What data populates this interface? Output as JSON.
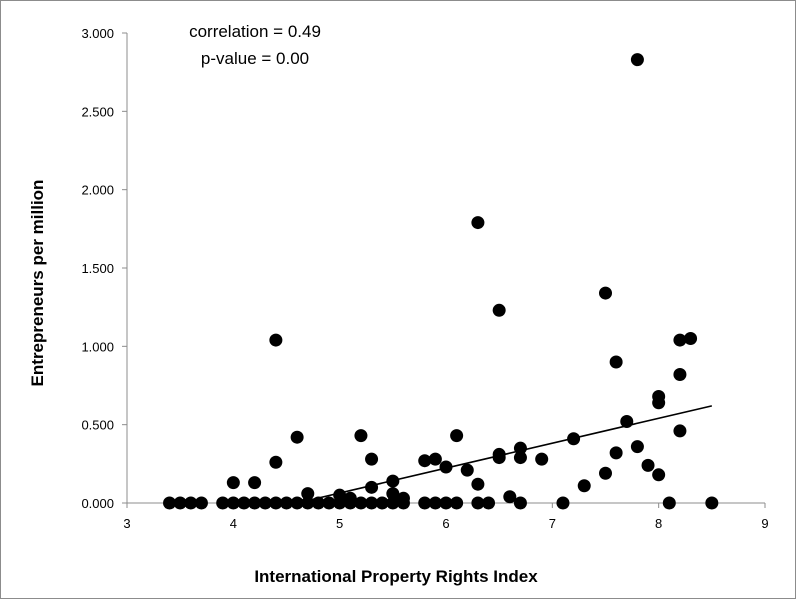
{
  "chart_data": {
    "type": "scatter",
    "xlabel": "International Property Rights Index",
    "ylabel": "Entrepreneurs per million",
    "xlim": [
      3,
      9
    ],
    "ylim": [
      0,
      3
    ],
    "x_ticks": [
      "3",
      "4",
      "5",
      "6",
      "7",
      "8",
      "9"
    ],
    "y_ticks": [
      "0.000",
      "0.500",
      "1.000",
      "1.500",
      "2.000",
      "2.500",
      "3.000"
    ],
    "grid": false,
    "legend": "none",
    "annotations": [
      "correlation = 0.49",
      "p-value = 0.00"
    ],
    "point_color": "#000000",
    "trendline": {
      "x": [
        4.6,
        8.5
      ],
      "y": [
        0.0,
        0.62
      ]
    },
    "points": [
      {
        "x": 3.4,
        "y": 0.0
      },
      {
        "x": 3.5,
        "y": 0.0
      },
      {
        "x": 3.6,
        "y": 0.0
      },
      {
        "x": 3.7,
        "y": 0.0
      },
      {
        "x": 3.9,
        "y": 0.0
      },
      {
        "x": 4.0,
        "y": 0.0
      },
      {
        "x": 4.1,
        "y": 0.0
      },
      {
        "x": 4.2,
        "y": 0.0
      },
      {
        "x": 4.3,
        "y": 0.0
      },
      {
        "x": 4.4,
        "y": 0.0
      },
      {
        "x": 4.5,
        "y": 0.0
      },
      {
        "x": 4.6,
        "y": 0.0
      },
      {
        "x": 4.7,
        "y": 0.0
      },
      {
        "x": 4.8,
        "y": 0.0
      },
      {
        "x": 4.9,
        "y": 0.0
      },
      {
        "x": 5.0,
        "y": 0.0
      },
      {
        "x": 5.1,
        "y": 0.0
      },
      {
        "x": 5.2,
        "y": 0.0
      },
      {
        "x": 5.3,
        "y": 0.0
      },
      {
        "x": 5.4,
        "y": 0.0
      },
      {
        "x": 5.5,
        "y": 0.0
      },
      {
        "x": 5.6,
        "y": 0.0
      },
      {
        "x": 5.8,
        "y": 0.0
      },
      {
        "x": 5.9,
        "y": 0.0
      },
      {
        "x": 6.0,
        "y": 0.0
      },
      {
        "x": 6.1,
        "y": 0.0
      },
      {
        "x": 6.3,
        "y": 0.0
      },
      {
        "x": 6.4,
        "y": 0.0
      },
      {
        "x": 6.7,
        "y": 0.0
      },
      {
        "x": 7.1,
        "y": 0.0
      },
      {
        "x": 8.1,
        "y": 0.0
      },
      {
        "x": 8.5,
        "y": 0.0
      },
      {
        "x": 4.0,
        "y": 0.13
      },
      {
        "x": 4.2,
        "y": 0.13
      },
      {
        "x": 4.4,
        "y": 0.26
      },
      {
        "x": 4.4,
        "y": 1.04
      },
      {
        "x": 4.6,
        "y": 0.42
      },
      {
        "x": 4.7,
        "y": 0.06
      },
      {
        "x": 5.0,
        "y": 0.05
      },
      {
        "x": 5.1,
        "y": 0.03
      },
      {
        "x": 5.2,
        "y": 0.43
      },
      {
        "x": 5.3,
        "y": 0.28
      },
      {
        "x": 5.3,
        "y": 0.1
      },
      {
        "x": 5.5,
        "y": 0.14
      },
      {
        "x": 5.5,
        "y": 0.06
      },
      {
        "x": 5.6,
        "y": 0.03
      },
      {
        "x": 5.8,
        "y": 0.27
      },
      {
        "x": 5.9,
        "y": 0.28
      },
      {
        "x": 6.0,
        "y": 0.23
      },
      {
        "x": 6.1,
        "y": 0.43
      },
      {
        "x": 6.2,
        "y": 0.21
      },
      {
        "x": 6.3,
        "y": 1.79
      },
      {
        "x": 6.3,
        "y": 0.12
      },
      {
        "x": 6.5,
        "y": 1.23
      },
      {
        "x": 6.5,
        "y": 0.31
      },
      {
        "x": 6.5,
        "y": 0.29
      },
      {
        "x": 6.6,
        "y": 0.04
      },
      {
        "x": 6.7,
        "y": 0.35
      },
      {
        "x": 6.7,
        "y": 0.29
      },
      {
        "x": 6.9,
        "y": 0.28
      },
      {
        "x": 7.2,
        "y": 0.41
      },
      {
        "x": 7.3,
        "y": 0.11
      },
      {
        "x": 7.5,
        "y": 1.34
      },
      {
        "x": 7.5,
        "y": 0.19
      },
      {
        "x": 7.6,
        "y": 0.9
      },
      {
        "x": 7.6,
        "y": 0.32
      },
      {
        "x": 7.7,
        "y": 0.52
      },
      {
        "x": 7.8,
        "y": 2.83
      },
      {
        "x": 7.8,
        "y": 0.36
      },
      {
        "x": 7.9,
        "y": 0.24
      },
      {
        "x": 8.0,
        "y": 0.68
      },
      {
        "x": 8.0,
        "y": 0.64
      },
      {
        "x": 8.0,
        "y": 0.18
      },
      {
        "x": 8.2,
        "y": 1.04
      },
      {
        "x": 8.2,
        "y": 0.82
      },
      {
        "x": 8.2,
        "y": 0.46
      },
      {
        "x": 8.3,
        "y": 1.05
      }
    ]
  }
}
